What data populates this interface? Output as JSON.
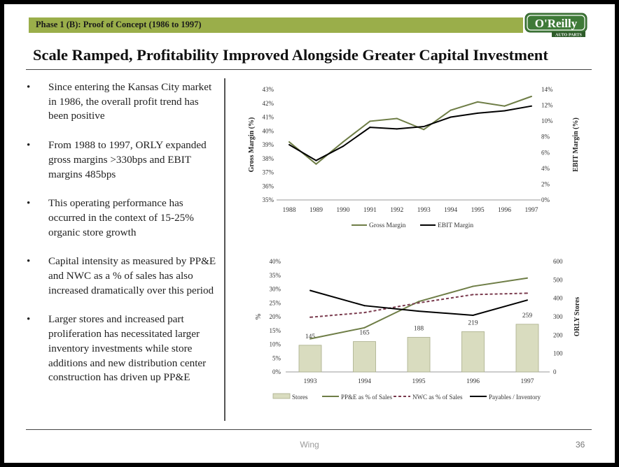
{
  "header": {
    "phase": "Phase 1 (B): Proof of Concept (1986 to 1997)",
    "title": "Scale Ramped, Profitability Improved Alongside Greater Capital Investment",
    "logo_text": "O'Reilly",
    "logo_subtext": "AUTO PARTS",
    "accent_color": "#9aae4a"
  },
  "bullets": [
    "Since entering the Kansas City market in 1986, the overall profit trend has been positive",
    "From 1988 to 1997, ORLY expanded  gross margins >330bps and EBIT margins 485bps",
    "This operating performance has occurred in the context of 15-25% organic store growth",
    "Capital intensity as measured by PP&E and NWC as a % of sales has also increased dramatically over this period",
    "Larger stores and increased part proliferation has necessitated larger inventory investments while store additions and new distribution center construction has driven up PP&E"
  ],
  "footer": {
    "center": "Wing",
    "page": "36"
  },
  "chart_data": [
    {
      "type": "line",
      "x": [
        "1988",
        "1989",
        "1990",
        "1991",
        "1992",
        "1993",
        "1994",
        "1995",
        "1996",
        "1997"
      ],
      "ylabel": "Gross Margin (%)",
      "y2label": "EBIT Margin (%)",
      "ylim": [
        35,
        43
      ],
      "y2lim": [
        0,
        14
      ],
      "yticks": [
        "35%",
        "36%",
        "37%",
        "38%",
        "39%",
        "40%",
        "41%",
        "42%",
        "43%"
      ],
      "y2ticks": [
        "0%",
        "2%",
        "4%",
        "6%",
        "8%",
        "10%",
        "12%",
        "14%"
      ],
      "series": [
        {
          "name": "Gross Margin",
          "axis": "left",
          "color": "#6e7d46",
          "values": [
            39.2,
            37.6,
            39.2,
            40.7,
            40.9,
            40.1,
            41.5,
            42.1,
            41.8,
            42.5
          ]
        },
        {
          "name": "EBIT Margin",
          "axis": "right",
          "color": "#000000",
          "values": [
            7.0,
            5.0,
            6.8,
            9.2,
            9.0,
            9.3,
            10.5,
            11.0,
            11.3,
            11.9
          ]
        }
      ],
      "legend": "bottom"
    },
    {
      "type": "bar",
      "categories": [
        "1993",
        "1994",
        "1995",
        "1996",
        "1997"
      ],
      "ylabel": "%",
      "y2label": "ORLY Stores",
      "ylim": [
        0,
        40
      ],
      "y2lim": [
        0,
        600
      ],
      "yticks": [
        "0%",
        "5%",
        "10%",
        "15%",
        "20%",
        "25%",
        "30%",
        "35%",
        "40%"
      ],
      "y2ticks": [
        "0",
        "100",
        "200",
        "300",
        "400",
        "500",
        "600"
      ],
      "series": [
        {
          "name": "Stores",
          "kind": "bar",
          "axis": "right",
          "color": "#d9dcbf",
          "values": [
            145,
            165,
            188,
            219,
            259
          ],
          "labels": [
            "145",
            "165",
            "188",
            "219",
            "259"
          ]
        },
        {
          "name": "PP&E as % of Sales",
          "kind": "line",
          "axis": "left",
          "color": "#6e7d46",
          "style": "solid",
          "values": [
            12.0,
            16.0,
            25.5,
            31.0,
            34.0
          ]
        },
        {
          "name": "NWC as % of Sales",
          "kind": "line",
          "axis": "left",
          "color": "#7a3b4e",
          "style": "dashed",
          "values": [
            19.8,
            21.5,
            25.0,
            28.0,
            28.5
          ]
        },
        {
          "name": "Payables / Inventory",
          "kind": "line",
          "axis": "left",
          "color": "#000000",
          "style": "solid",
          "values": [
            29.5,
            24.0,
            22.0,
            20.5,
            26.0
          ]
        }
      ],
      "legend": "bottom"
    }
  ]
}
